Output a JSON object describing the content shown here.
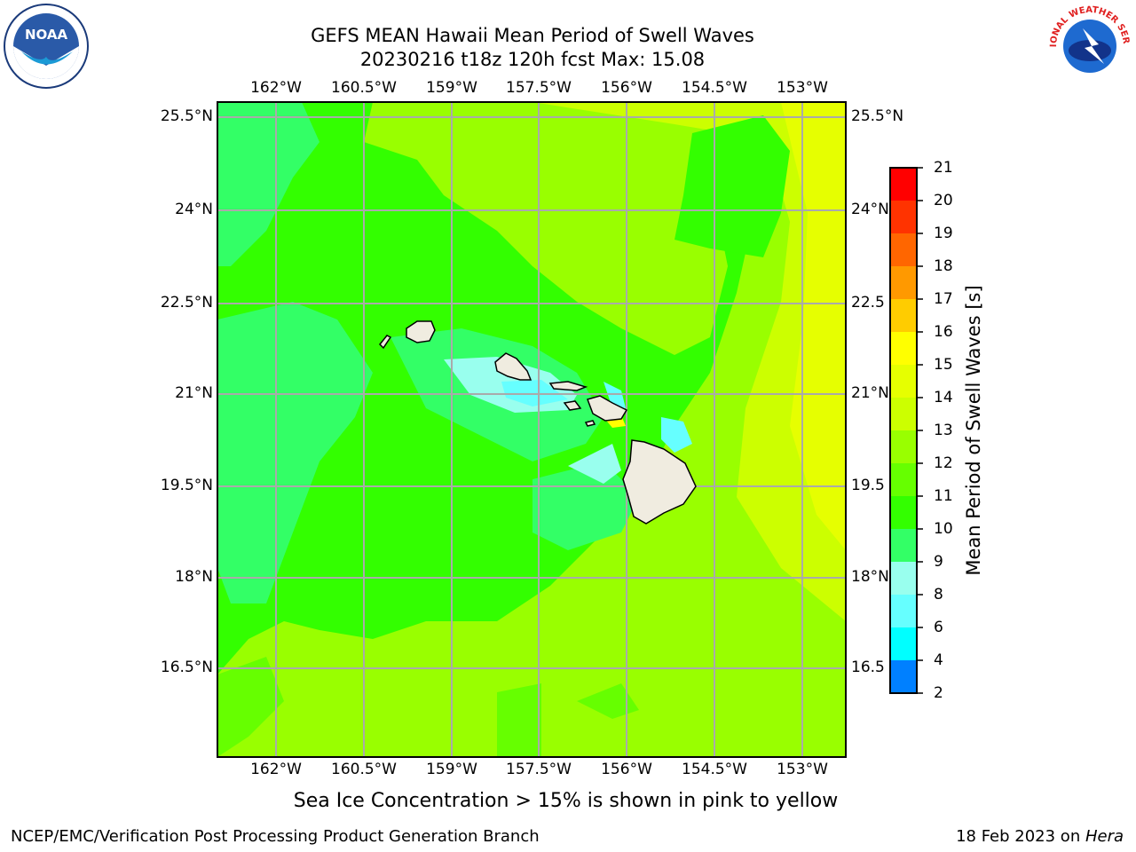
{
  "title_line1": "GEFS MEAN Hawaii Mean Period of Swell Waves",
  "title_line2": "20230216 t18z 120h fcst   Max: 15.08",
  "lon_labels": [
    "162°W",
    "160.5°W",
    "159°W",
    "157.5°W",
    "156°W",
    "154.5°W",
    "153°W"
  ],
  "lat_labels_left": [
    "25.5°N",
    "24°N",
    "22.5°N",
    "21°N",
    "19.5°N",
    "18°N",
    "16.5°N"
  ],
  "lat_labels_right": [
    "25.5°N",
    "24°N",
    "22.5",
    "21°N",
    "19.5",
    "18°N",
    "16.5"
  ],
  "colorbar": {
    "label": "Mean Period of Swell Waves [s]",
    "ticks": [
      "21",
      "20",
      "19",
      "18",
      "17",
      "16",
      "15",
      "14",
      "13",
      "12",
      "11",
      "10",
      "9",
      "8",
      "6",
      "4",
      "2"
    ],
    "colors": [
      "#ff0000",
      "#ff3300",
      "#ff6600",
      "#ff9900",
      "#ffcc00",
      "#ffff00",
      "#e6ff00",
      "#ccff00",
      "#99ff00",
      "#66ff00",
      "#33ff00",
      "#33ff66",
      "#99ffee",
      "#66ffff",
      "#00ffff",
      "#0080ff",
      "#0000ff"
    ]
  },
  "subtitle": "Sea Ice Concentration > 15% is shown in pink to yellow",
  "footer_left": "NCEP/EMC/Verification Post Processing Product Generation Branch",
  "footer_date": "18 Feb 2023 on ",
  "footer_host": "Hera",
  "logo_left_text": "NOAA",
  "logo_right_text": "NATIONAL WEATHER SERVICE"
}
